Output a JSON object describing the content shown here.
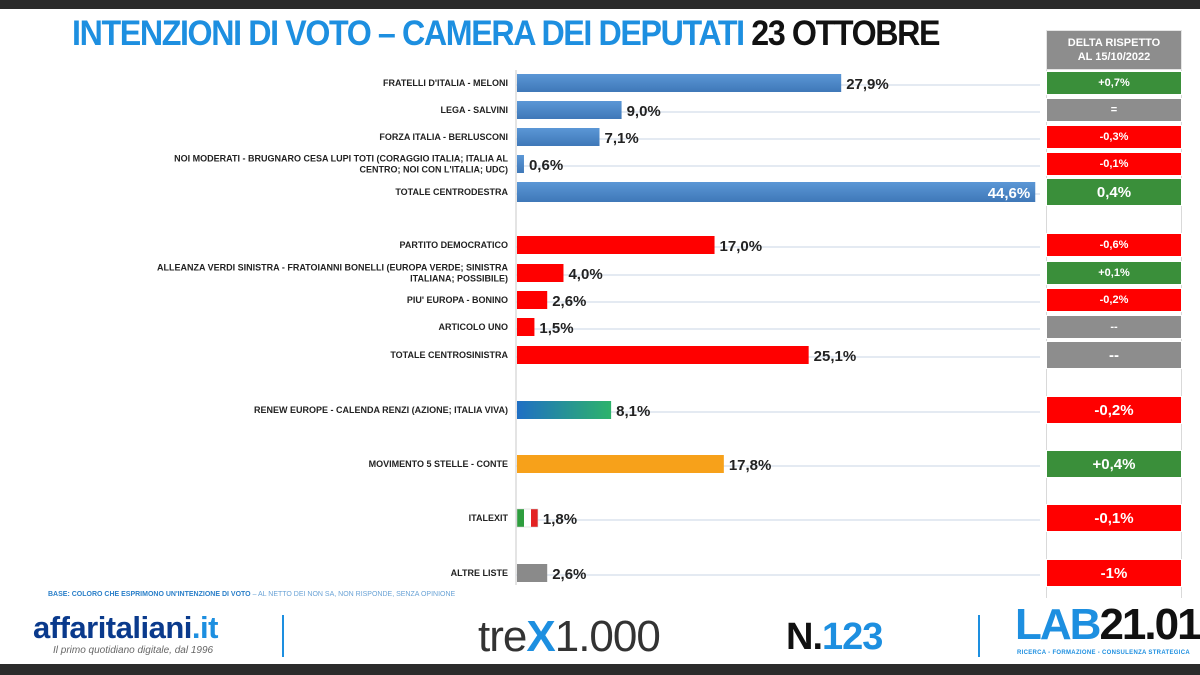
{
  "title": {
    "main": "INTENZIONI DI VOTO – CAMERA DEI DEPUTATI",
    "date": "23 OTTOBRE"
  },
  "delta_header": {
    "line1": "DELTA RISPETTO",
    "line2": "AL 15/10/2022"
  },
  "colors": {
    "centrodestra": "#4a86c5",
    "centrosinistra": "#ff0000",
    "renew_start": "#1f6fc4",
    "renew_end": "#2db36b",
    "m5s": "#f7a11a",
    "altre": "#8a8a8a",
    "delta_green": "#3a8f3a",
    "delta_red": "#ff0000",
    "delta_gray": "#8d8d8d"
  },
  "chart_data": {
    "type": "bar",
    "orientation": "horizontal",
    "categories": [
      "FRATELLI D'ITALIA - MELONI",
      "LEGA - SALVINI",
      "FORZA ITALIA - BERLUSCONI",
      "NOI MODERATI - BRUGNARO CESA LUPI TOTI (CORAGGIO ITALIA; ITALIA AL CENTRO; NOI CON L'ITALIA; UDC)",
      "TOTALE CENTRODESTRA",
      "PARTITO DEMOCRATICO",
      "ALLEANZA VERDI SINISTRA - FRATOIANNI BONELLI (EUROPA VERDE; SINISTRA ITALIANA; POSSIBILE)",
      "PIU' EUROPA - BONINO",
      "ARTICOLO UNO",
      "TOTALE CENTROSINISTRA",
      "RENEW EUROPE - CALENDA RENZI (AZIONE; ITALIA VIVA)",
      "MOVIMENTO 5 STELLE - CONTE",
      "ITALEXIT",
      "ALTRE LISTE"
    ],
    "values": [
      27.9,
      9.0,
      7.1,
      0.6,
      44.6,
      17.0,
      4.0,
      2.6,
      1.5,
      25.1,
      8.1,
      17.8,
      1.8,
      2.6
    ],
    "value_labels": [
      "27,9%",
      "9,0%",
      "7,1%",
      "0,6%",
      "44,6%",
      "17,0%",
      "4,0%",
      "2,6%",
      "1,5%",
      "25,1%",
      "8,1%",
      "17,8%",
      "1,8%",
      "2,6%"
    ],
    "delta_labels": [
      "+0,7%",
      "=",
      "-0,3%",
      "-0,1%",
      "0,4%",
      "-0,6%",
      "+0,1%",
      "-0,2%",
      "--",
      "--",
      "-0,2%",
      "+0,4%",
      "-0,1%",
      "-1%"
    ],
    "delta_colors": [
      "green",
      "gray",
      "red",
      "red",
      "green",
      "red",
      "green",
      "red",
      "gray",
      "gray",
      "red",
      "green",
      "red",
      "red"
    ],
    "bar_colors": [
      "centrodestra",
      "centrodestra",
      "centrodestra",
      "centrodestra",
      "centrodestra",
      "centrosinistra",
      "centrosinistra",
      "centrosinistra",
      "centrosinistra",
      "centrosinistra",
      "renew",
      "m5s",
      "italexit",
      "altre"
    ],
    "xlim": [
      0,
      50
    ],
    "grid": "horizontal row lines"
  },
  "footnote": {
    "bold": "BASE: COLORO CHE ESPRIMONO UN'INTENZIONE DI VOTO",
    "light": "– AL NETTO DEI NON SA, NON RISPONDE, SENZA OPINIONE"
  },
  "footer": {
    "affaritaliani_name": "affaritaliani",
    "affaritaliani_tld": ".it",
    "affaritaliani_tagline": "Il primo quotidiano digitale, dal 1996",
    "trex_pre": "tre",
    "trex_x": "X",
    "trex_post": "1.000",
    "number_prefix": "N.",
    "number_value": "123",
    "lab_part1": "LAB",
    "lab_part2": "21.01",
    "lab_tagline": "RICERCA - FORMAZIONE - CONSULENZA STRATEGICA"
  }
}
